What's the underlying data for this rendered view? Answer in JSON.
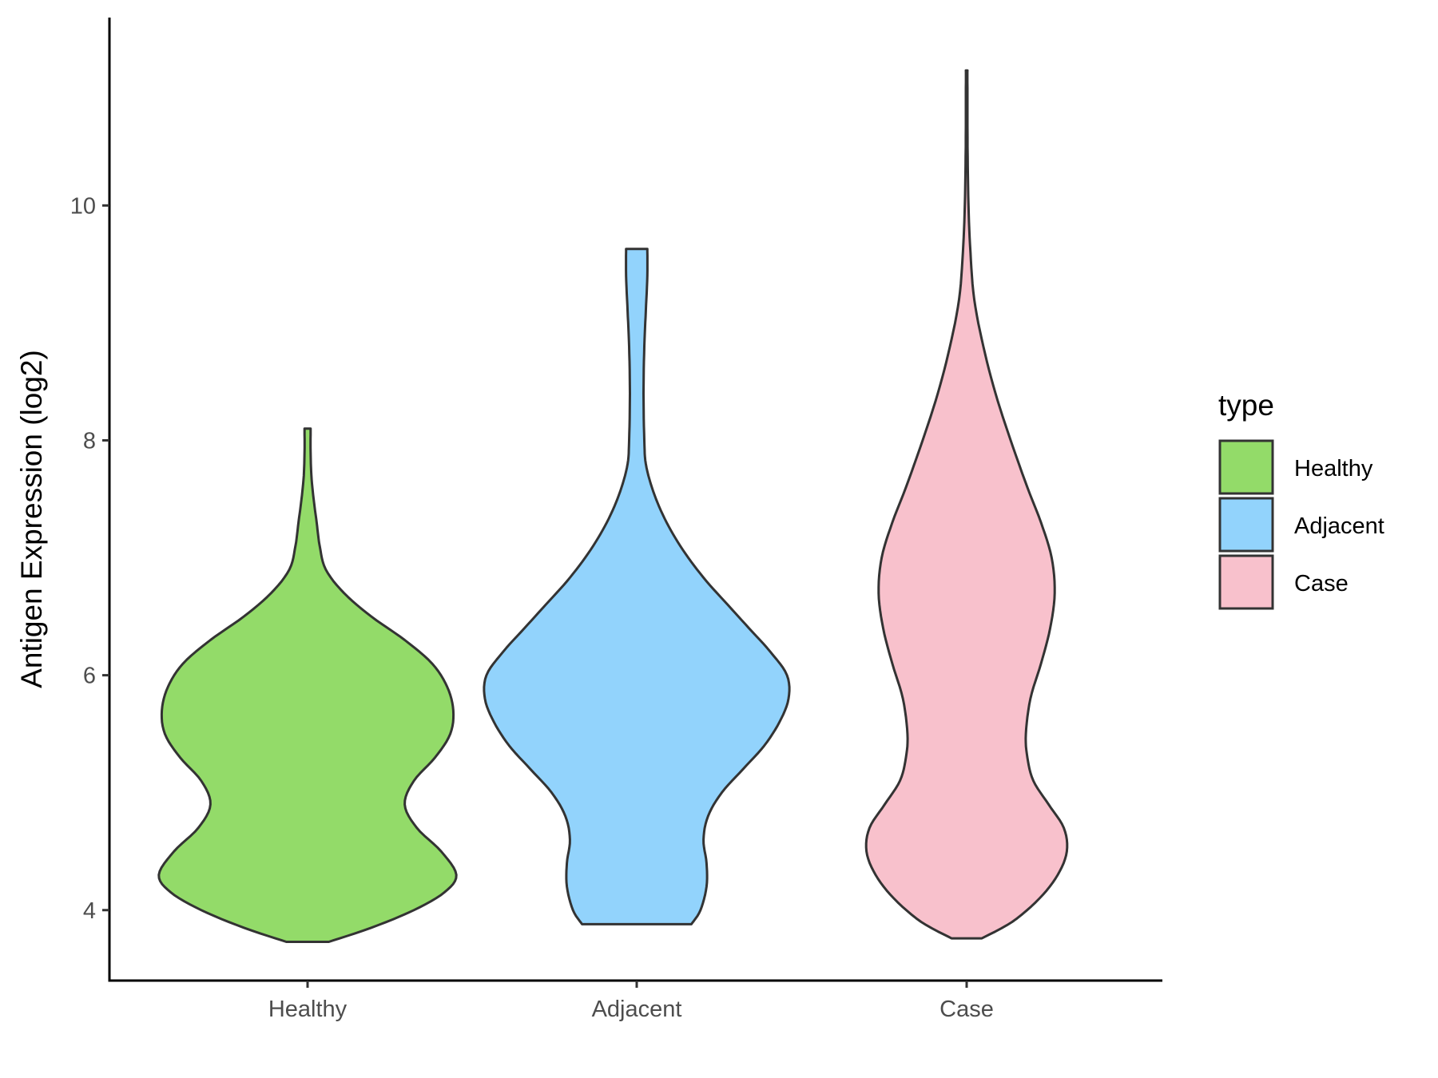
{
  "chart_data": {
    "type": "violin",
    "xlabel": "",
    "ylabel": "Antigen Expression (log2)",
    "ylim": [
      3.4,
      11.6
    ],
    "y_ticks": [
      4,
      6,
      8,
      10
    ],
    "categories": [
      "Healthy",
      "Adjacent",
      "Case"
    ],
    "legend": {
      "title": "type",
      "position": "right"
    },
    "grid": false,
    "series": [
      {
        "name": "Healthy",
        "color": "#93DB69",
        "min": 3.73,
        "max": 8.1,
        "profile": [
          [
            3.73,
            0.14
          ],
          [
            3.85,
            0.42
          ],
          [
            4.0,
            0.7
          ],
          [
            4.15,
            0.9
          ],
          [
            4.3,
            0.98
          ],
          [
            4.5,
            0.88
          ],
          [
            4.7,
            0.72
          ],
          [
            4.9,
            0.64
          ],
          [
            5.1,
            0.7
          ],
          [
            5.3,
            0.84
          ],
          [
            5.5,
            0.94
          ],
          [
            5.7,
            0.96
          ],
          [
            5.9,
            0.92
          ],
          [
            6.1,
            0.82
          ],
          [
            6.3,
            0.64
          ],
          [
            6.5,
            0.42
          ],
          [
            6.7,
            0.24
          ],
          [
            6.9,
            0.12
          ],
          [
            7.1,
            0.08
          ],
          [
            7.3,
            0.06
          ],
          [
            7.5,
            0.04
          ],
          [
            7.7,
            0.025
          ],
          [
            7.9,
            0.02
          ],
          [
            8.1,
            0.02
          ]
        ]
      },
      {
        "name": "Adjacent",
        "color": "#92D3FC",
        "min": 3.88,
        "max": 9.63,
        "profile": [
          [
            3.88,
            0.36
          ],
          [
            4.0,
            0.42
          ],
          [
            4.2,
            0.46
          ],
          [
            4.4,
            0.46
          ],
          [
            4.6,
            0.44
          ],
          [
            4.8,
            0.47
          ],
          [
            5.0,
            0.56
          ],
          [
            5.2,
            0.7
          ],
          [
            5.4,
            0.84
          ],
          [
            5.6,
            0.94
          ],
          [
            5.8,
            1.0
          ],
          [
            6.0,
            0.99
          ],
          [
            6.2,
            0.88
          ],
          [
            6.4,
            0.74
          ],
          [
            6.6,
            0.6
          ],
          [
            6.8,
            0.46
          ],
          [
            7.0,
            0.34
          ],
          [
            7.2,
            0.24
          ],
          [
            7.4,
            0.16
          ],
          [
            7.6,
            0.1
          ],
          [
            7.8,
            0.06
          ],
          [
            8.0,
            0.05
          ],
          [
            8.4,
            0.045
          ],
          [
            8.8,
            0.05
          ],
          [
            9.1,
            0.06
          ],
          [
            9.4,
            0.07
          ],
          [
            9.63,
            0.07
          ]
        ]
      },
      {
        "name": "Case",
        "color": "#F8C1CC",
        "min": 3.76,
        "max": 11.15,
        "profile": [
          [
            3.76,
            0.1
          ],
          [
            3.9,
            0.3
          ],
          [
            4.1,
            0.48
          ],
          [
            4.3,
            0.6
          ],
          [
            4.5,
            0.66
          ],
          [
            4.7,
            0.64
          ],
          [
            4.9,
            0.54
          ],
          [
            5.1,
            0.44
          ],
          [
            5.3,
            0.4
          ],
          [
            5.5,
            0.39
          ],
          [
            5.8,
            0.42
          ],
          [
            6.1,
            0.49
          ],
          [
            6.4,
            0.55
          ],
          [
            6.7,
            0.58
          ],
          [
            7.0,
            0.56
          ],
          [
            7.3,
            0.49
          ],
          [
            7.6,
            0.4
          ],
          [
            8.0,
            0.29
          ],
          [
            8.4,
            0.19
          ],
          [
            8.8,
            0.11
          ],
          [
            9.2,
            0.05
          ],
          [
            9.6,
            0.025
          ],
          [
            10.0,
            0.012
          ],
          [
            10.5,
            0.006
          ],
          [
            11.0,
            0.005
          ],
          [
            11.15,
            0.005
          ]
        ]
      }
    ]
  }
}
